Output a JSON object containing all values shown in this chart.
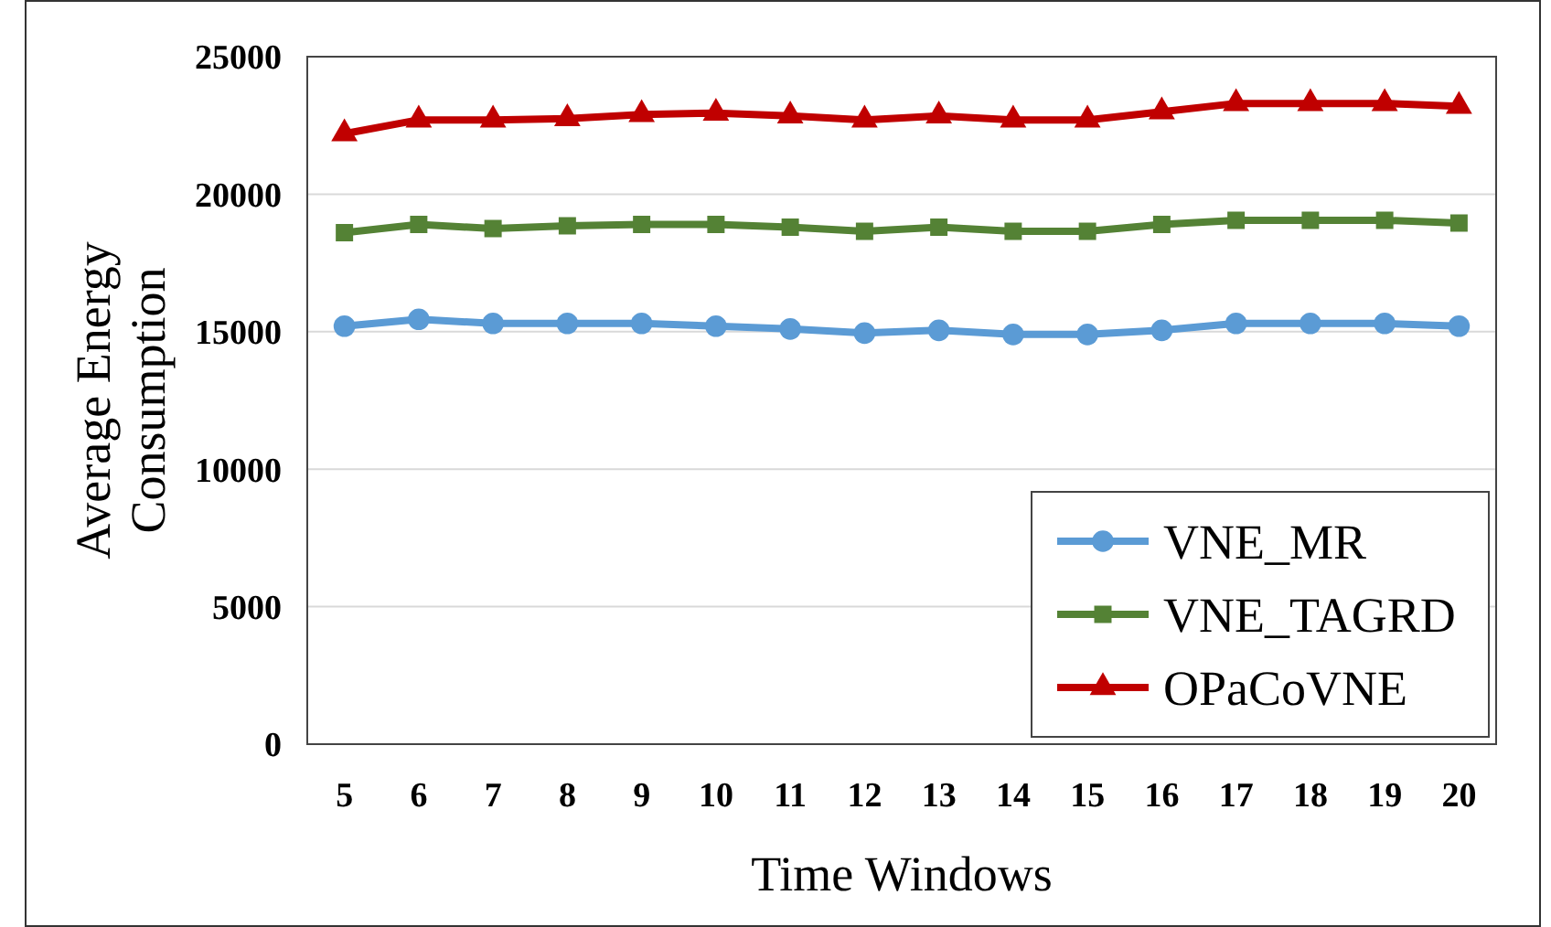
{
  "chart_data": {
    "type": "line",
    "xlabel": "Time Windows",
    "ylabel": "Average  Energy Consumption",
    "categories": [
      "5",
      "6",
      "7",
      "8",
      "9",
      "10",
      "11",
      "12",
      "13",
      "14",
      "15",
      "16",
      "17",
      "18",
      "19",
      "20"
    ],
    "series": [
      {
        "name": "VNE_MR",
        "color": "#5b9bd5",
        "marker": "circle",
        "values": [
          15200,
          15450,
          15300,
          15300,
          15300,
          15200,
          15100,
          14950,
          15050,
          14900,
          14900,
          15050,
          15300,
          15300,
          15300,
          15200
        ]
      },
      {
        "name": "VNE_TAGRD",
        "color": "#548235",
        "marker": "square",
        "values": [
          18600,
          18900,
          18750,
          18850,
          18900,
          18900,
          18800,
          18650,
          18800,
          18650,
          18650,
          18900,
          19050,
          19050,
          19050,
          18950
        ]
      },
      {
        "name": "OPaCoVNE",
        "color": "#c00000",
        "marker": "triangle",
        "values": [
          22200,
          22700,
          22700,
          22750,
          22900,
          22950,
          22850,
          22700,
          22850,
          22700,
          22700,
          23000,
          23300,
          23300,
          23300,
          23200
        ]
      }
    ],
    "ylim": [
      0,
      25000
    ],
    "yticks": [
      0,
      5000,
      10000,
      15000,
      20000,
      25000
    ],
    "grid": "y",
    "legend": "bottom right"
  }
}
